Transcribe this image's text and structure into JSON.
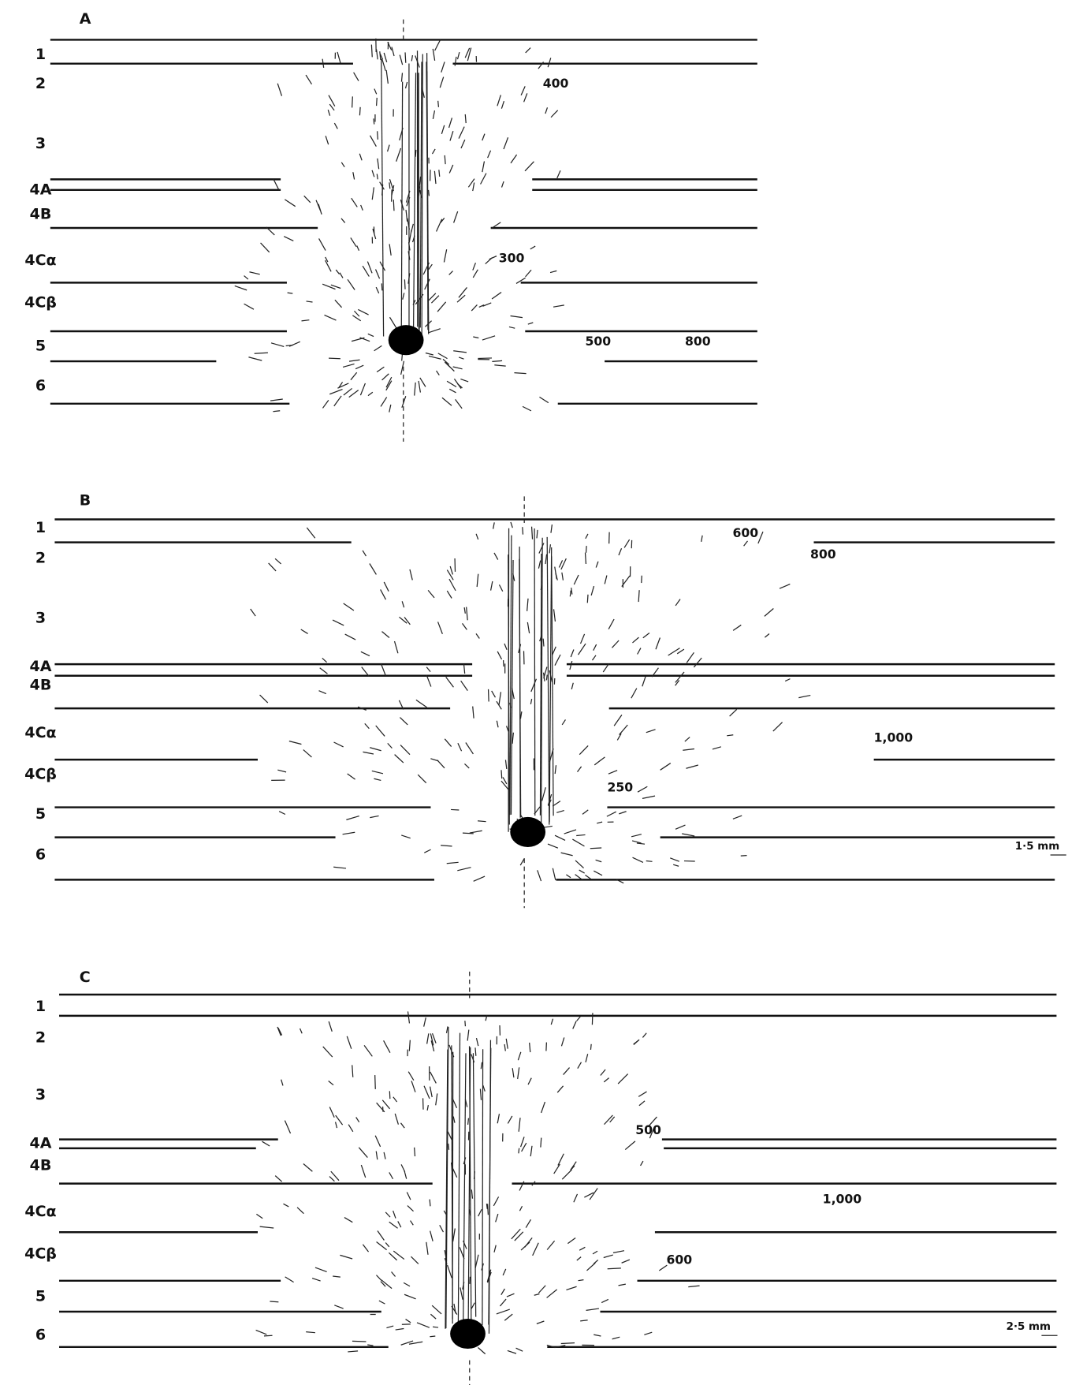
{
  "panels": [
    {
      "label": "A",
      "layers": [
        "1",
        "2",
        "3",
        "4A",
        "4B",
        "4Cα",
        "4Cβ",
        "5",
        "6"
      ],
      "annotations": [
        "400",
        "300",
        "500",
        "800"
      ]
    },
    {
      "label": "B",
      "layers": [
        "1",
        "2",
        "3",
        "4A",
        "4B",
        "4Cα",
        "4Cβ",
        "5",
        "6"
      ],
      "annotations": [
        "600",
        "800",
        "1,000",
        "250"
      ],
      "scale": "1·5 mm"
    },
    {
      "label": "C",
      "layers": [
        "1",
        "2",
        "3",
        "4A",
        "4B",
        "4Cα",
        "4Cβ",
        "5",
        "6"
      ],
      "annotations": [
        "500",
        "1,000",
        "600"
      ],
      "scale": "2·5 mm"
    }
  ]
}
